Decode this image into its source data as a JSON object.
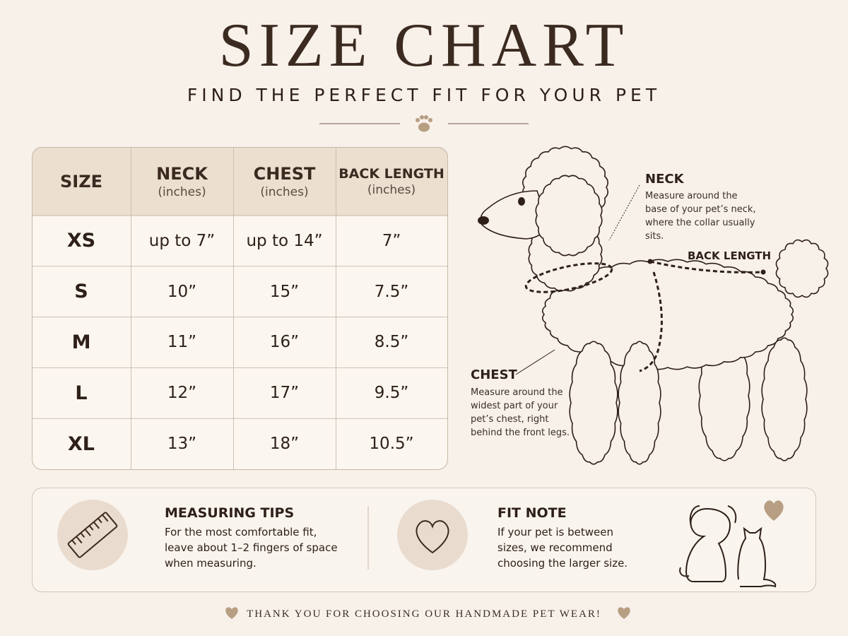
{
  "header": {
    "title": "SIZE CHART",
    "subtitle": "FIND THE PERFECT FIT FOR YOUR PET"
  },
  "table": {
    "columns": [
      {
        "name": "SIZE"
      },
      {
        "name": "NECK",
        "unit": "(inches)"
      },
      {
        "name": "CHEST",
        "unit": "(inches)"
      },
      {
        "name": "BACK LENGTH",
        "unit": "(inches)"
      }
    ],
    "rows": [
      [
        "XS",
        "up to 7”",
        "up to 14”",
        "7”"
      ],
      [
        "S",
        "10”",
        "15”",
        "7.5”"
      ],
      [
        "M",
        "11”",
        "16”",
        "8.5”"
      ],
      [
        "L",
        "12”",
        "17”",
        "9.5”"
      ],
      [
        "XL",
        "13”",
        "18”",
        "10.5”"
      ]
    ]
  },
  "diagram": {
    "neck": {
      "title": "NECK",
      "text": "Measure around the base of your pet’s neck, where the collar usually sits."
    },
    "back_length": {
      "title": "BACK LENGTH"
    },
    "chest": {
      "title": "CHEST",
      "text": "Measure around the widest part of your pet’s chest, right behind the front legs."
    }
  },
  "tips": [
    {
      "title": "MEASURING TIPS",
      "text": "For the most comfortable fit, leave about 1–2 fingers of space when measuring."
    },
    {
      "title": "FIT NOTE",
      "text": "If your pet is between sizes, we recommend choosing the larger size."
    }
  ],
  "footer": "THANK YOU FOR CHOOSING OUR HANDMADE PET WEAR!"
}
